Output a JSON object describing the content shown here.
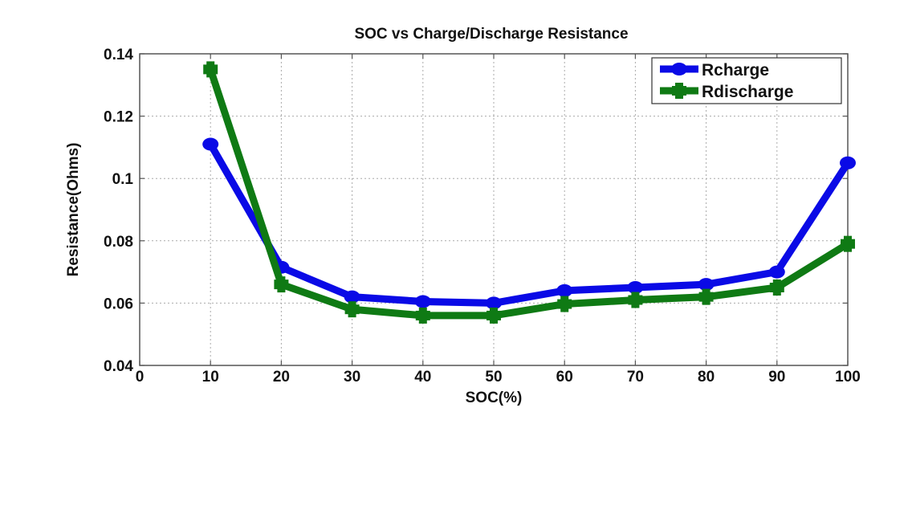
{
  "chart_data": {
    "type": "line",
    "title": "SOC vs Charge/Discharge Resistance",
    "xlabel": "SOC(%)",
    "ylabel": "Resistance(Ohms)",
    "xlim": [
      0,
      100
    ],
    "ylim": [
      0.04,
      0.14
    ],
    "xticks": [
      0,
      10,
      20,
      30,
      40,
      50,
      60,
      70,
      80,
      90,
      100
    ],
    "xtick_labels": [
      "0",
      "10",
      "20",
      "30",
      "40",
      "50",
      "60",
      "70",
      "80",
      "90",
      "100"
    ],
    "yticks": [
      0.04,
      0.06,
      0.08,
      0.1,
      0.12,
      0.14
    ],
    "ytick_labels": [
      "0.04",
      "0.06",
      "0.08",
      "0.1",
      "0.12",
      "0.14"
    ],
    "grid": true,
    "legend_position": "top-right",
    "x": [
      10,
      20,
      30,
      40,
      50,
      60,
      70,
      80,
      90,
      100
    ],
    "series": [
      {
        "name": "Rcharge",
        "color": "#0a0ae6",
        "marker": "circle",
        "values": [
          0.111,
          0.0715,
          0.062,
          0.0605,
          0.06,
          0.064,
          0.065,
          0.066,
          0.07,
          0.105
        ]
      },
      {
        "name": "Rdischarge",
        "color": "#0f7a14",
        "marker": "square-plus",
        "values": [
          0.135,
          0.066,
          0.058,
          0.056,
          0.056,
          0.0597,
          0.061,
          0.062,
          0.065,
          0.079
        ]
      }
    ]
  }
}
